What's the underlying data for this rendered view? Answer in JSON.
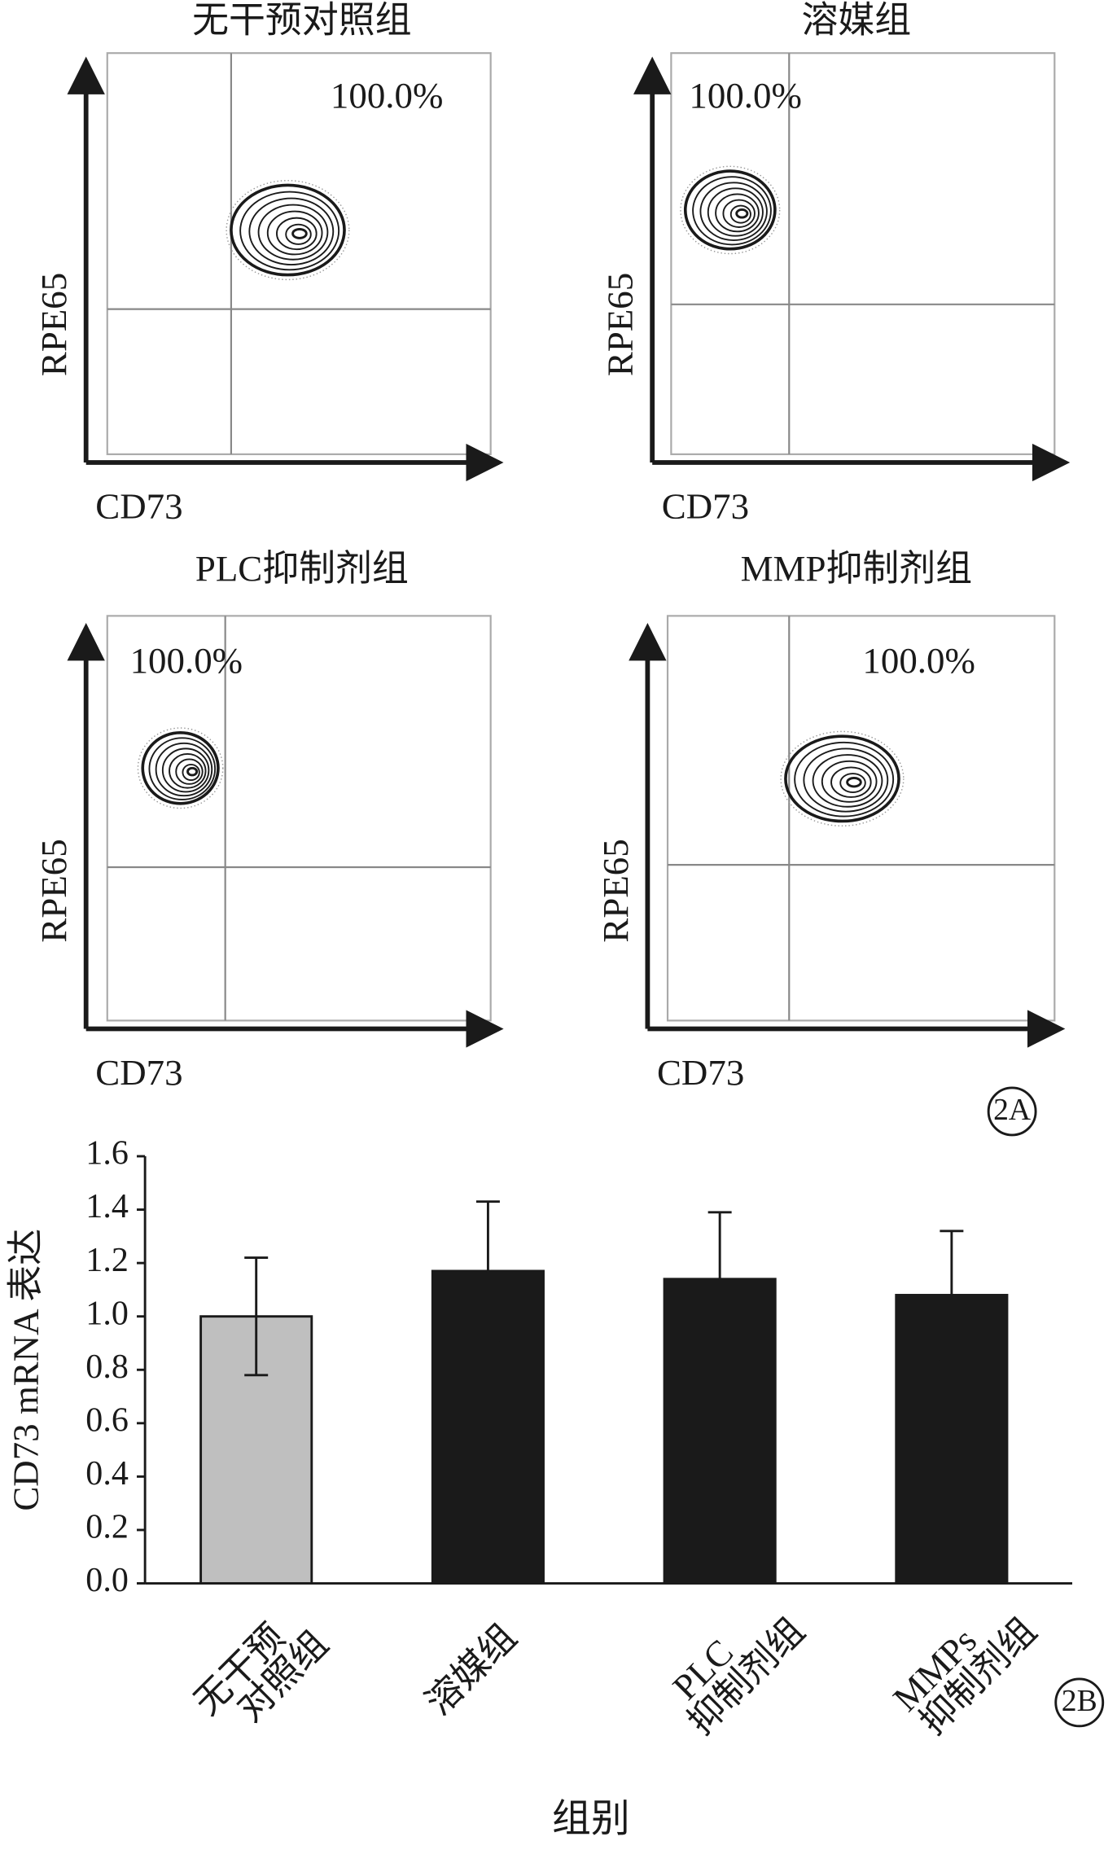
{
  "chart_data": [
    {
      "type": "contour",
      "title": "无干预对照组",
      "x_label": "CD73",
      "y_label": "RPE65",
      "annotation": "100.0%"
    },
    {
      "type": "contour",
      "title": "溶媒组",
      "x_label": "CD73",
      "y_label": "RPE65",
      "annotation": "100.0%"
    },
    {
      "type": "contour",
      "title": "PLC抑制剂组",
      "x_label": "CD73",
      "y_label": "RPE65",
      "annotation": "100.0%"
    },
    {
      "type": "contour",
      "title": "MMP抑制剂组",
      "x_label": "CD73",
      "y_label": "RPE65",
      "annotation": "100.0%",
      "panel_label": "2A"
    },
    {
      "type": "bar",
      "y_label": "CD73 mRNA 表达",
      "x_label": "组别",
      "panel_label": "2B",
      "categories": [
        [
          "无干预",
          "对照组"
        ],
        [
          "溶媒组"
        ],
        [
          "PLC",
          "抑制剂组"
        ],
        [
          "MMPs",
          "抑制剂组"
        ]
      ],
      "values": [
        1.0,
        1.17,
        1.14,
        1.08
      ],
      "errors": [
        0.22,
        0.26,
        0.25,
        0.24
      ],
      "colors": [
        "#bfbfbf",
        "#1a1a1a",
        "#1a1a1a",
        "#1a1a1a"
      ],
      "ylim": [
        0,
        1.6
      ],
      "yticks": [
        {
          "value": 0,
          "label": "0.0"
        },
        0.2,
        0.4,
        0.6,
        0.8,
        {
          "value": 1,
          "label": "1.0"
        },
        1.2,
        1.4,
        1.6
      ]
    }
  ]
}
